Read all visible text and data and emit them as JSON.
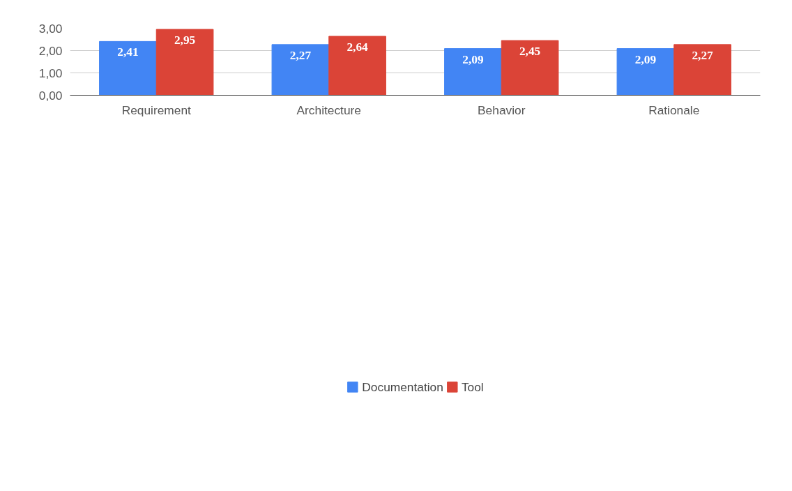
{
  "chart_data": {
    "type": "bar",
    "categories": [
      "Requirement",
      "Architecture",
      "Behavior",
      "Rationale"
    ],
    "series": [
      {
        "name": "Documentation",
        "color": "#4285f4",
        "values": [
          2.41,
          2.27,
          2.09,
          2.09
        ],
        "value_labels": [
          "2,41",
          "2,27",
          "2,09",
          "2,09"
        ]
      },
      {
        "name": "Tool",
        "color": "#db4437",
        "values": [
          2.95,
          2.64,
          2.45,
          2.27
        ],
        "value_labels": [
          "2,95",
          "2,64",
          "2,45",
          "2,27"
        ]
      }
    ],
    "ylim": [
      0,
      3
    ],
    "yticks": [
      {
        "value": 0,
        "label": "0,00"
      },
      {
        "value": 1,
        "label": "1,00"
      },
      {
        "value": 2,
        "label": "2,00"
      },
      {
        "value": 3,
        "label": "3,00"
      }
    ],
    "grid": "y",
    "legend": "bottom"
  }
}
